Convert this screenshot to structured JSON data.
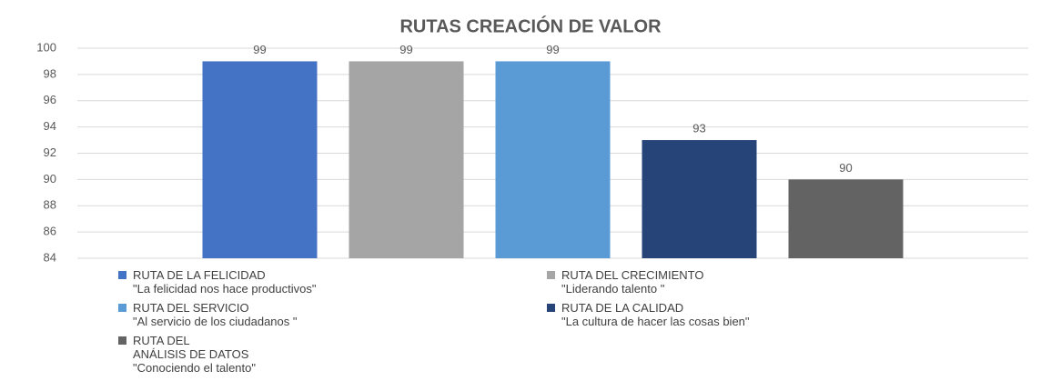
{
  "chart_data": {
    "type": "bar",
    "title": "RUTAS CREACIÓN DE VALOR",
    "categories": [
      null
    ],
    "series": [
      {
        "name": "RUTA DE LA FELICIDAD\n\"La felicidad nos hace productivos\"",
        "color": "#4472c4",
        "values": [
          99
        ]
      },
      {
        "name": "RUTA DEL CRECIMIENTO\n\"Liderando talento \"",
        "color": "#a5a5a5",
        "values": [
          99
        ]
      },
      {
        "name": "RUTA DEL SERVICIO\n\"Al servicio de los ciudadanos \"",
        "color": "#5b9bd5",
        "values": [
          99
        ]
      },
      {
        "name": "RUTA DE LA CALIDAD\n\"La cultura de hacer las cosas bien\"",
        "color": "#264478",
        "values": [
          93
        ]
      },
      {
        "name": "RUTA DEL\nANÁLISIS DE DATOS\n\"Conociendo el talento\"",
        "color": "#636363",
        "values": [
          90
        ]
      }
    ],
    "ylim": [
      84,
      100
    ],
    "yticks": [
      84,
      86,
      88,
      90,
      92,
      94,
      96,
      98,
      100
    ],
    "grid": true,
    "legend": "bottom"
  }
}
